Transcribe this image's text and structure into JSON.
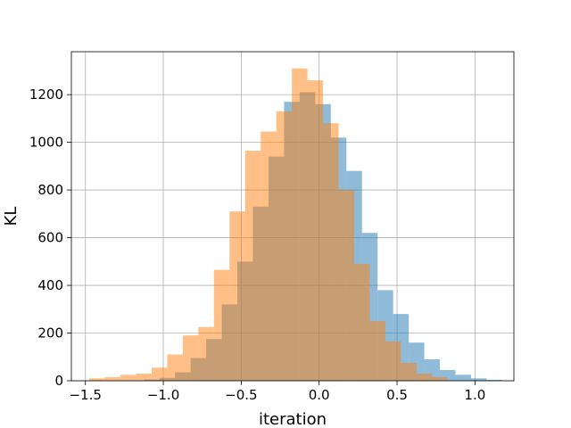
{
  "chart_data": {
    "type": "bar",
    "title": "",
    "xlabel": "iteration",
    "ylabel": "KL",
    "xlim": [
      -1.59,
      1.25
    ],
    "ylim": [
      0,
      1380
    ],
    "grid": true,
    "legend": "none",
    "x_ticks": [
      -1.5,
      -1.0,
      -0.5,
      0.0,
      0.5,
      1.0
    ],
    "x_tick_labels": [
      "−1.5",
      "−1.0",
      "−0.5",
      "0.0",
      "0.5",
      "1.0"
    ],
    "y_ticks": [
      0,
      200,
      400,
      600,
      800,
      1000,
      1200
    ],
    "y_tick_labels": [
      "0",
      "200",
      "400",
      "600",
      "800",
      "1000",
      "1200"
    ],
    "series": [
      {
        "color": "#1f77b4",
        "opacity": 0.5,
        "bin_edges": [
          -1.125,
          -1.025,
          -0.925,
          -0.825,
          -0.725,
          -0.625,
          -0.525,
          -0.425,
          -0.325,
          -0.225,
          -0.125,
          -0.025,
          0.075,
          0.175,
          0.275,
          0.375,
          0.475,
          0.575,
          0.675,
          0.775,
          0.875,
          0.975,
          1.075,
          1.175
        ],
        "counts": [
          5,
          12,
          35,
          95,
          175,
          320,
          500,
          730,
          940,
          1170,
          1210,
          1160,
          1020,
          880,
          620,
          380,
          280,
          160,
          90,
          45,
          25,
          10,
          4
        ]
      },
      {
        "color": "#ff7f0e",
        "opacity": 0.5,
        "bin_edges": [
          -1.475,
          -1.375,
          -1.275,
          -1.175,
          -1.075,
          -0.975,
          -0.875,
          -0.775,
          -0.675,
          -0.575,
          -0.475,
          -0.375,
          -0.275,
          -0.175,
          -0.075,
          0.025,
          0.125,
          0.225,
          0.325,
          0.425,
          0.525,
          0.625,
          0.725,
          0.825
        ],
        "counts": [
          10,
          15,
          25,
          30,
          55,
          110,
          190,
          225,
          465,
          710,
          965,
          1045,
          1130,
          1310,
          1260,
          1080,
          800,
          490,
          250,
          165,
          75,
          30,
          15
        ]
      }
    ]
  }
}
